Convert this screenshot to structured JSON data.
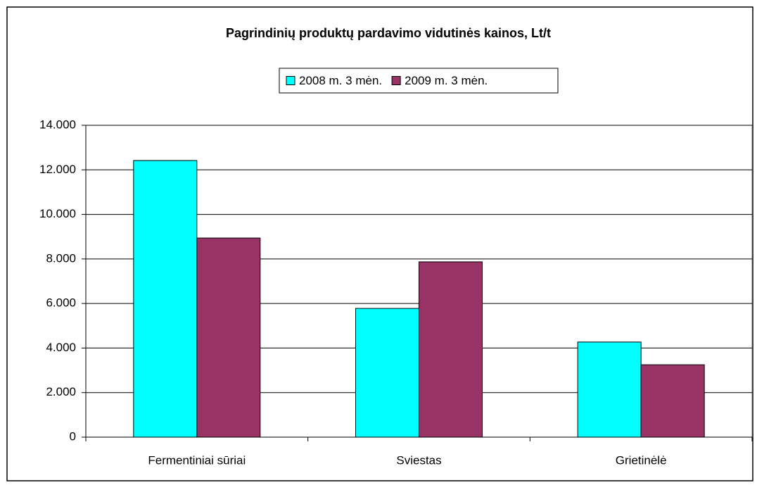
{
  "chart_data": {
    "type": "bar",
    "title": "Pagrindinių produktų pardavimo vidutinės kainos, Lt/t",
    "categories": [
      "Fermentiniai sūriai",
      "Sviestas",
      "Grietinėlė"
    ],
    "series": [
      {
        "name": "2008 m. 3 mėn.",
        "color": "#00ffff",
        "values": [
          12420,
          5780,
          4270
        ]
      },
      {
        "name": "2009 m. 3 mėn.",
        "color": "#993366",
        "values": [
          8940,
          7870,
          3250
        ]
      }
    ],
    "ylim": [
      0,
      14000
    ],
    "yticks": [
      0,
      {
        "value": 2000,
        "label": "2.000"
      },
      {
        "value": 4000,
        "label": "4.000"
      },
      {
        "value": 6000,
        "label": "6.000"
      },
      {
        "value": 8000,
        "label": "8.000"
      },
      {
        "value": 10000,
        "label": "10.000"
      },
      {
        "value": 12000,
        "label": "12.000"
      },
      {
        "value": 14000,
        "label": "14.000"
      }
    ],
    "grid": true,
    "legend": "top"
  }
}
